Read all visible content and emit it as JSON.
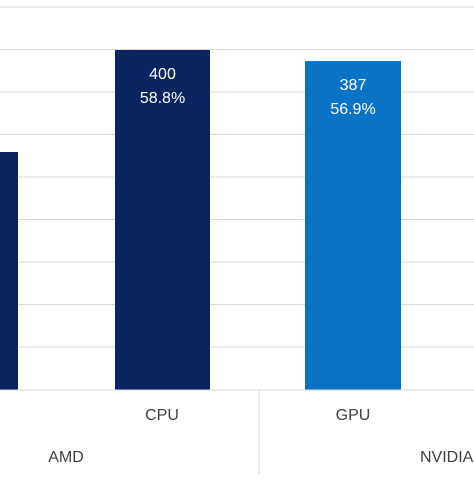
{
  "colors": {
    "dark_navy": "#0a2460",
    "blue": "#0a73c6",
    "grid": "#d9d9d9",
    "axis_text": "#404040",
    "bar_label": "#ffffff",
    "background": "#ffffff"
  },
  "chart_data": {
    "type": "bar",
    "title": "",
    "xlabel": "",
    "ylabel": "",
    "grid": true,
    "ylim": [
      0,
      400
    ],
    "bars": [
      {
        "vendor": "AMD",
        "category": "",
        "value": 280,
        "color": "#0a2460",
        "labels": []
      },
      {
        "vendor": "AMD",
        "category": "CPU",
        "value": 400,
        "color": "#0a2460",
        "labels": [
          "400",
          "58.8%"
        ]
      },
      {
        "vendor": "NVIDIA",
        "category": "GPU",
        "value": 387,
        "color": "#0a73c6",
        "labels": [
          "387",
          "56.9%"
        ]
      }
    ],
    "groups": [
      {
        "name": "AMD"
      },
      {
        "name": "NVIDIA"
      }
    ],
    "categories": [
      "CPU",
      "GPU"
    ]
  }
}
